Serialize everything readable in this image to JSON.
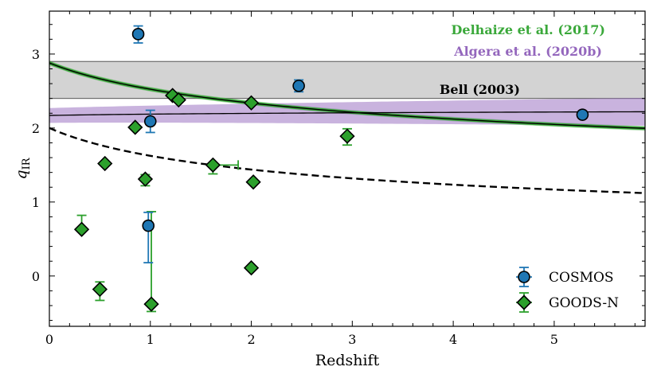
{
  "chart_data": {
    "type": "scatter",
    "xlabel": "Redshift",
    "ylabel_main": "q",
    "ylabel_sub": "IR",
    "xlim": [
      0,
      5.9
    ],
    "ylim": [
      -0.68,
      3.58
    ],
    "x_ticks": [
      0,
      1,
      2,
      3,
      4,
      5
    ],
    "y_ticks": [
      0,
      1,
      2,
      3
    ],
    "legend_placement": "lower-right",
    "colors": {
      "cosmos": "#1f77b4",
      "goods": "#2ca02c",
      "delhaize": "#3aa83a",
      "algera": "#9467bd",
      "bell_band": "#d3d3d3"
    },
    "annotations": {
      "delhaize": "Delhaize et al. (2017)",
      "algera": "Algera et al. (2020b)",
      "bell": "Bell (2003)"
    },
    "bell_band": {
      "y_low": 2.4,
      "y_high": 2.9
    },
    "delhaize_curve": {
      "a": 2.88,
      "b": -0.19,
      "band": 0.03
    },
    "algera_curve": {
      "a": 2.17,
      "b": 0.0118,
      "band_at_zero": 0.1,
      "band_growth": 0.015
    },
    "dashed_curve": {
      "a": 2.0,
      "b": -0.3
    },
    "series": [
      {
        "name": "COSMOS",
        "marker": "circle",
        "points": [
          {
            "x": 0.88,
            "y": 3.27,
            "yerr": [
              0.12,
              0.11
            ]
          },
          {
            "x": 1.0,
            "y": 2.09,
            "yerr": [
              0.15,
              0.15
            ]
          },
          {
            "x": 0.98,
            "y": 0.68,
            "yerr": [
              0.5,
              0.18
            ]
          },
          {
            "x": 2.47,
            "y": 2.57,
            "yerr": [
              0.08,
              0.08
            ]
          },
          {
            "x": 5.28,
            "y": 2.18,
            "yerr": [
              0.04,
              0.04
            ]
          }
        ]
      },
      {
        "name": "GOODS-N",
        "marker": "diamond",
        "points": [
          {
            "x": 0.32,
            "y": 0.63,
            "yerr": [
              0.0,
              0.19
            ]
          },
          {
            "x": 0.5,
            "y": -0.18,
            "yerr": [
              0.15,
              0.1
            ]
          },
          {
            "x": 0.55,
            "y": 1.52,
            "yerr": [
              0.0,
              0.0
            ]
          },
          {
            "x": 0.85,
            "y": 2.01,
            "yerr": [
              0.0,
              0.0
            ]
          },
          {
            "x": 0.95,
            "y": 1.31,
            "yerr": [
              0.09,
              0.06
            ]
          },
          {
            "x": 1.01,
            "y": -0.38,
            "yerr": [
              0.1,
              1.25
            ]
          },
          {
            "x": 1.22,
            "y": 2.44,
            "yerr": [
              0.0,
              0.0
            ]
          },
          {
            "x": 1.28,
            "y": 2.38,
            "yerr": [
              0.0,
              0.0
            ]
          },
          {
            "x": 1.62,
            "y": 1.5,
            "yerr": [
              0.12,
              0.0
            ],
            "xerr": [
              0.0,
              0.25
            ]
          },
          {
            "x": 2.0,
            "y": 2.34,
            "yerr": [
              0.0,
              0.0
            ]
          },
          {
            "x": 2.0,
            "y": 0.11,
            "yerr": [
              0.0,
              0.0
            ]
          },
          {
            "x": 2.02,
            "y": 1.27,
            "yerr": [
              0.0,
              0.0
            ]
          },
          {
            "x": 2.95,
            "y": 1.89,
            "yerr": [
              0.12,
              0.1
            ]
          }
        ]
      }
    ]
  }
}
